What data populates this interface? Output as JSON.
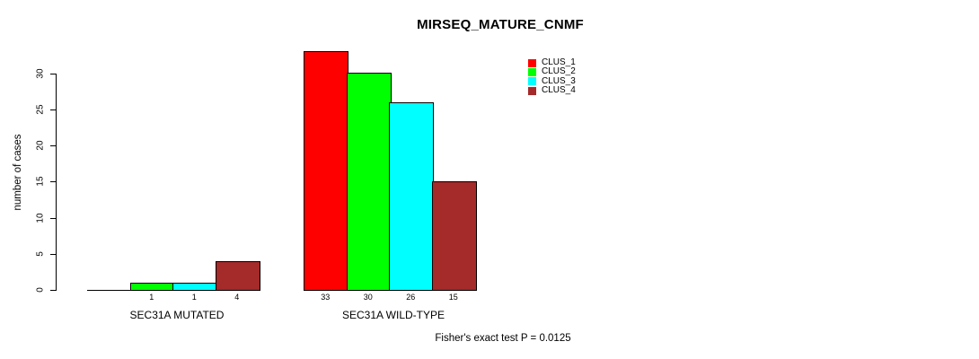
{
  "chart_data": {
    "type": "bar",
    "title": "MIRSEQ_MATURE_CNMF",
    "xlabel": "",
    "ylabel": "number of cases",
    "categories": [
      "SEC31A MUTATED",
      "SEC31A WILD-TYPE"
    ],
    "series": [
      {
        "name": "CLUS_1",
        "color": "#ff0000",
        "values": [
          0,
          33
        ]
      },
      {
        "name": "CLUS_2",
        "color": "#00ff00",
        "values": [
          1,
          30
        ]
      },
      {
        "name": "CLUS_3",
        "color": "#00ffff",
        "values": [
          1,
          26
        ]
      },
      {
        "name": "CLUS_4",
        "color": "#a52a2a",
        "values": [
          4,
          15
        ]
      }
    ],
    "bar_value_labels": [
      [
        "",
        "1",
        "1",
        "4"
      ],
      [
        "33",
        "30",
        "26",
        "15"
      ]
    ],
    "yticks": [
      0,
      5,
      10,
      15,
      20,
      25,
      30
    ],
    "ylim": [
      0,
      33
    ],
    "grid": false,
    "legend_position": "top-right"
  },
  "footer": {
    "note": "Fisher's exact test P = 0.0125"
  }
}
